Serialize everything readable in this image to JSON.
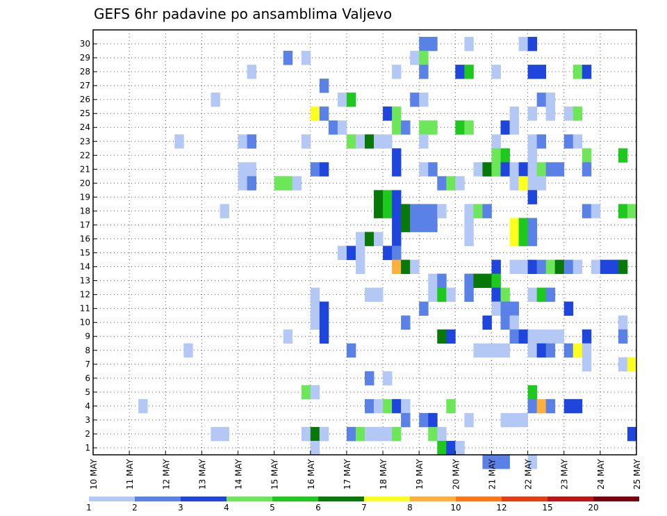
{
  "chart_data": {
    "type": "heatmap",
    "title": "GEFS 6hr padavine po ansamblima Valjevo",
    "x_tick_labels": [
      "10 MAY",
      "11 MAY",
      "12 MAY",
      "13 MAY",
      "14 MAY",
      "15 MAY",
      "16 MAY",
      "17 MAY",
      "18 MAY",
      "19 MAY",
      "20 MAY",
      "21 MAY",
      "22 MAY",
      "23 MAY",
      "24 MAY",
      "25 MAY"
    ],
    "y_tick_labels": [
      "1",
      "2",
      "3",
      "4",
      "5",
      "6",
      "7",
      "8",
      "9",
      "10",
      "11",
      "12",
      "13",
      "14",
      "15",
      "16",
      "17",
      "18",
      "19",
      "20",
      "21",
      "22",
      "23",
      "24",
      "25",
      "26",
      "27",
      "28",
      "29",
      "30"
    ],
    "x_range_steps": [
      0,
      60
    ],
    "y_range": [
      0,
      30
    ],
    "grid": true,
    "legend": {
      "placement": "bottom",
      "bins": [
        {
          "color": "#b4c8f5"
        },
        {
          "color": "#5a82e6"
        },
        {
          "color": "#1e46dc"
        },
        {
          "color": "#6ee65a"
        },
        {
          "color": "#1ec81e"
        },
        {
          "color": "#087808"
        },
        {
          "color": "#ffff1e"
        },
        {
          "color": "#ffaf3c"
        },
        {
          "color": "#ff7814"
        },
        {
          "color": "#e63c14"
        },
        {
          "color": "#be1414"
        },
        {
          "color": "#78000a"
        }
      ],
      "labels": [
        "1",
        "2",
        "3",
        "4",
        "5",
        "6",
        "7",
        "8",
        "10",
        "12",
        "15",
        "20"
      ]
    },
    "cells": [
      {
        "y": 30,
        "t": [
          [
            37,
            2
          ],
          [
            38,
            2
          ],
          [
            42,
            1
          ],
          [
            48,
            1
          ],
          [
            49,
            3
          ]
        ]
      },
      {
        "y": 29,
        "t": [
          [
            22,
            2
          ],
          [
            24,
            1
          ],
          [
            36,
            1
          ],
          [
            37,
            4
          ]
        ]
      },
      {
        "y": 28,
        "t": [
          [
            18,
            1
          ],
          [
            34,
            1
          ],
          [
            37,
            2
          ],
          [
            41,
            3
          ],
          [
            42,
            5
          ],
          [
            45,
            1
          ],
          [
            49,
            3
          ],
          [
            50,
            3
          ],
          [
            54,
            4
          ],
          [
            55,
            3
          ]
        ]
      },
      {
        "y": 27,
        "t": [
          [
            26,
            2
          ]
        ]
      },
      {
        "y": 26,
        "t": [
          [
            14,
            1
          ],
          [
            28,
            1
          ],
          [
            29,
            5
          ],
          [
            36,
            2
          ],
          [
            37,
            1
          ],
          [
            50,
            2
          ],
          [
            51,
            1
          ]
        ]
      },
      {
        "y": 25,
        "t": [
          [
            25,
            7
          ],
          [
            26,
            2
          ],
          [
            33,
            3
          ],
          [
            34,
            4
          ],
          [
            47,
            1
          ],
          [
            49,
            1
          ],
          [
            51,
            1
          ],
          [
            53,
            1
          ],
          [
            54,
            4
          ]
        ]
      },
      {
        "y": 24,
        "t": [
          [
            27,
            2
          ],
          [
            28,
            1
          ],
          [
            34,
            4
          ],
          [
            35,
            2
          ],
          [
            37,
            4
          ],
          [
            38,
            4
          ],
          [
            41,
            5
          ],
          [
            42,
            4
          ],
          [
            46,
            3
          ],
          [
            47,
            1
          ]
        ]
      },
      {
        "y": 23,
        "t": [
          [
            10,
            1
          ],
          [
            17,
            1
          ],
          [
            18,
            2
          ],
          [
            24,
            1
          ],
          [
            29,
            4
          ],
          [
            30,
            1
          ],
          [
            31,
            6
          ],
          [
            32,
            1
          ],
          [
            33,
            1
          ],
          [
            37,
            1
          ],
          [
            45,
            1
          ],
          [
            49,
            1
          ],
          [
            50,
            2
          ],
          [
            53,
            2
          ],
          [
            54,
            1
          ]
        ]
      },
      {
        "y": 22,
        "t": [
          [
            34,
            3
          ],
          [
            45,
            4
          ],
          [
            46,
            5
          ],
          [
            49,
            1
          ],
          [
            55,
            4
          ],
          [
            59,
            5
          ]
        ]
      },
      {
        "y": 21,
        "t": [
          [
            17,
            1
          ],
          [
            18,
            1
          ],
          [
            25,
            2
          ],
          [
            26,
            3
          ],
          [
            34,
            3
          ],
          [
            37,
            1
          ],
          [
            38,
            2
          ],
          [
            43,
            1
          ],
          [
            44,
            6
          ],
          [
            45,
            4
          ],
          [
            46,
            3
          ],
          [
            47,
            1
          ],
          [
            48,
            3
          ],
          [
            49,
            1
          ],
          [
            50,
            4
          ],
          [
            51,
            2
          ],
          [
            52,
            2
          ],
          [
            55,
            2
          ]
        ]
      },
      {
        "y": 20,
        "t": [
          [
            17,
            1
          ],
          [
            18,
            2
          ],
          [
            21,
            4
          ],
          [
            22,
            4
          ],
          [
            23,
            1
          ],
          [
            39,
            2
          ],
          [
            40,
            4
          ],
          [
            41,
            1
          ],
          [
            47,
            1
          ],
          [
            48,
            7
          ],
          [
            49,
            1
          ],
          [
            50,
            1
          ]
        ]
      },
      {
        "y": 19,
        "t": [
          [
            32,
            6
          ],
          [
            33,
            5
          ],
          [
            34,
            3
          ],
          [
            49,
            3
          ]
        ]
      },
      {
        "y": 18,
        "t": [
          [
            15,
            1
          ],
          [
            32,
            6
          ],
          [
            33,
            5
          ],
          [
            34,
            3
          ],
          [
            35,
            6
          ],
          [
            36,
            2
          ],
          [
            37,
            2
          ],
          [
            38,
            2
          ],
          [
            39,
            1
          ],
          [
            42,
            1
          ],
          [
            43,
            4
          ],
          [
            44,
            2
          ],
          [
            55,
            2
          ],
          [
            56,
            1
          ],
          [
            59,
            5
          ],
          [
            60,
            4
          ]
        ]
      },
      {
        "y": 17,
        "t": [
          [
            34,
            3
          ],
          [
            35,
            6
          ],
          [
            36,
            2
          ],
          [
            37,
            2
          ],
          [
            38,
            2
          ],
          [
            42,
            1
          ],
          [
            47,
            7
          ],
          [
            48,
            5
          ],
          [
            49,
            2
          ]
        ]
      },
      {
        "y": 16,
        "t": [
          [
            30,
            1
          ],
          [
            31,
            6
          ],
          [
            32,
            1
          ],
          [
            34,
            3
          ],
          [
            42,
            1
          ],
          [
            47,
            7
          ],
          [
            48,
            5
          ],
          [
            49,
            2
          ]
        ]
      },
      {
        "y": 15,
        "t": [
          [
            28,
            1
          ],
          [
            29,
            3
          ],
          [
            30,
            1
          ],
          [
            33,
            3
          ],
          [
            34,
            2
          ]
        ]
      },
      {
        "y": 14,
        "t": [
          [
            30,
            1
          ],
          [
            34,
            8
          ],
          [
            35,
            6
          ],
          [
            36,
            1
          ],
          [
            45,
            3
          ],
          [
            47,
            1
          ],
          [
            48,
            1
          ],
          [
            49,
            3
          ],
          [
            50,
            2
          ],
          [
            51,
            4
          ],
          [
            52,
            6
          ],
          [
            53,
            2
          ],
          [
            54,
            1
          ],
          [
            56,
            1
          ],
          [
            57,
            3
          ],
          [
            58,
            3
          ],
          [
            59,
            6
          ]
        ]
      },
      {
        "y": 13,
        "t": [
          [
            38,
            1
          ],
          [
            39,
            2
          ],
          [
            42,
            2
          ],
          [
            43,
            6
          ],
          [
            44,
            6
          ],
          [
            45,
            5
          ]
        ]
      },
      {
        "y": 12,
        "t": [
          [
            25,
            1
          ],
          [
            31,
            1
          ],
          [
            32,
            1
          ],
          [
            38,
            1
          ],
          [
            39,
            5
          ],
          [
            40,
            1
          ],
          [
            42,
            2
          ],
          [
            45,
            3
          ],
          [
            46,
            4
          ],
          [
            49,
            1
          ],
          [
            50,
            5
          ],
          [
            51,
            2
          ]
        ]
      },
      {
        "y": 11,
        "t": [
          [
            25,
            1
          ],
          [
            26,
            3
          ],
          [
            37,
            2
          ],
          [
            45,
            1
          ],
          [
            46,
            2
          ],
          [
            47,
            2
          ],
          [
            53,
            3
          ]
        ]
      },
      {
        "y": 10,
        "t": [
          [
            25,
            1
          ],
          [
            26,
            3
          ],
          [
            35,
            2
          ],
          [
            44,
            3
          ],
          [
            46,
            2
          ],
          [
            47,
            1
          ],
          [
            59,
            1
          ]
        ]
      },
      {
        "y": 9,
        "t": [
          [
            22,
            1
          ],
          [
            26,
            3
          ],
          [
            39,
            6
          ],
          [
            40,
            3
          ],
          [
            47,
            2
          ],
          [
            48,
            3
          ],
          [
            49,
            1
          ],
          [
            50,
            1
          ],
          [
            51,
            1
          ],
          [
            52,
            1
          ],
          [
            55,
            3
          ],
          [
            59,
            2
          ]
        ]
      },
      {
        "y": 8,
        "t": [
          [
            11,
            1
          ],
          [
            29,
            2
          ],
          [
            43,
            1
          ],
          [
            44,
            1
          ],
          [
            45,
            1
          ],
          [
            46,
            1
          ],
          [
            49,
            1
          ],
          [
            50,
            3
          ],
          [
            51,
            2
          ],
          [
            53,
            2
          ],
          [
            54,
            7
          ],
          [
            55,
            1
          ]
        ]
      },
      {
        "y": 7,
        "t": [
          [
            55,
            1
          ],
          [
            59,
            1
          ],
          [
            60,
            7
          ]
        ]
      },
      {
        "y": 6,
        "t": [
          [
            31,
            2
          ],
          [
            33,
            1
          ]
        ]
      },
      {
        "y": 5,
        "t": [
          [
            24,
            4
          ],
          [
            25,
            1
          ],
          [
            49,
            5
          ]
        ]
      },
      {
        "y": 4,
        "t": [
          [
            6,
            1
          ],
          [
            31,
            2
          ],
          [
            32,
            1
          ],
          [
            33,
            4
          ],
          [
            34,
            3
          ],
          [
            35,
            1
          ],
          [
            40,
            4
          ],
          [
            49,
            2
          ],
          [
            50,
            8
          ],
          [
            51,
            2
          ],
          [
            53,
            3
          ],
          [
            54,
            3
          ]
        ]
      },
      {
        "y": 3,
        "t": [
          [
            35,
            2
          ],
          [
            37,
            2
          ],
          [
            38,
            3
          ],
          [
            42,
            1
          ],
          [
            46,
            1
          ],
          [
            47,
            1
          ],
          [
            48,
            1
          ]
        ]
      },
      {
        "y": 2,
        "t": [
          [
            14,
            1
          ],
          [
            15,
            1
          ],
          [
            24,
            1
          ],
          [
            25,
            6
          ],
          [
            26,
            1
          ],
          [
            29,
            2
          ],
          [
            30,
            4
          ],
          [
            31,
            1
          ],
          [
            32,
            1
          ],
          [
            33,
            1
          ],
          [
            34,
            4
          ],
          [
            38,
            4
          ],
          [
            39,
            1
          ],
          [
            60,
            3
          ]
        ]
      },
      {
        "y": 1,
        "t": [
          [
            25,
            1
          ],
          [
            39,
            5
          ],
          [
            40,
            3
          ],
          [
            41,
            1
          ]
        ]
      },
      {
        "y": 0,
        "t": [
          [
            44,
            2
          ],
          [
            45,
            2
          ],
          [
            46,
            2
          ],
          [
            49,
            1
          ]
        ]
      }
    ]
  }
}
